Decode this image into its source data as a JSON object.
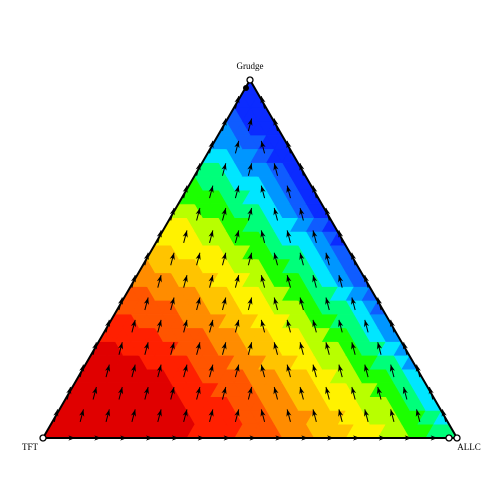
{
  "vertices": {
    "top": "Grudge",
    "left": "TFT",
    "right": "ALLC"
  },
  "colors": {
    "palette": [
      "#0b2bff",
      "#0f5cff",
      "#0096ff",
      "#00e6ff",
      "#00ff7a",
      "#1cff00",
      "#b8ff00",
      "#fff200",
      "#ffc400",
      "#ff8c00",
      "#ff5500",
      "#ff2000",
      "#e00000"
    ],
    "arrow": "#000000",
    "edge": "#000000"
  },
  "diagram_type": "ternary-phase-portrait",
  "stationary_points": [
    "top",
    "left",
    "right"
  ]
}
